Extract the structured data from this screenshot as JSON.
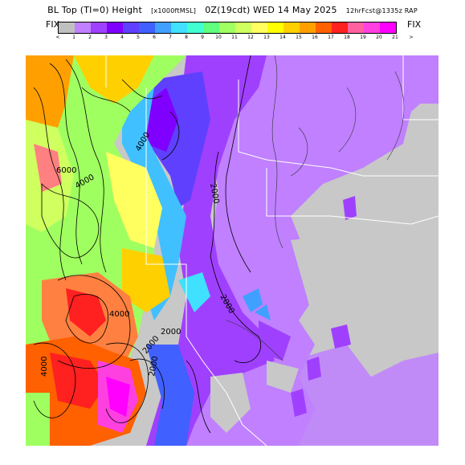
{
  "header": {
    "title_main": "BL Top (TI=0) Height",
    "title_units": "[x1000ftMSL]",
    "title_time": "0Z(19cdt) WED 14 May 2025",
    "title_run": "12hrFcst@1335z RAP"
  },
  "legend": {
    "fix_left": "FIX",
    "fix_right": "FIX",
    "tick_labels": [
      "<",
      "1",
      "2",
      "3",
      "4",
      "5",
      "6",
      "7",
      "8",
      "9",
      "10",
      "11",
      "12",
      "13",
      "14",
      "15",
      "16",
      "17",
      "18",
      "19",
      "20",
      "21",
      ">"
    ],
    "colors": [
      "#c0c0c0",
      "#c080ff",
      "#a040ff",
      "#8000ff",
      "#6040ff",
      "#4060ff",
      "#40a0ff",
      "#40e0ff",
      "#40ffd0",
      "#60ff80",
      "#a0ff60",
      "#d0ff60",
      "#ffff60",
      "#ffff00",
      "#ffd000",
      "#ffa000",
      "#ff6000",
      "#ff2020",
      "#ff60a0",
      "#ff40e0",
      "#ff00ff"
    ]
  },
  "map": {
    "contour_labels": [
      "6000",
      "4000",
      "4000",
      "2000",
      "2000",
      "4000",
      "2000",
      "2000",
      "4000",
      "2000"
    ]
  }
}
